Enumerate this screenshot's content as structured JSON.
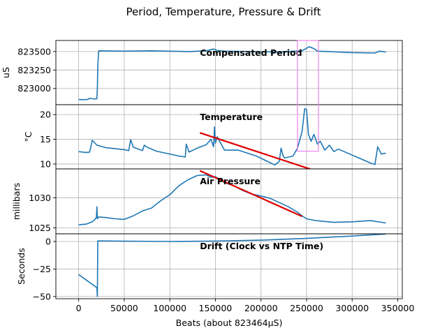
{
  "figure_title": "Period, Temperature, Pressure & Drift",
  "chart_data": [
    {
      "type": "line",
      "title": "Compensated Period",
      "xlabel": "",
      "ylabel": "uS",
      "xlim": [
        -25000,
        355000
      ],
      "ylim": [
        822780,
        823650
      ],
      "yticks": [
        823000,
        823250,
        823500
      ],
      "ytick_labels": [
        "823000",
        "823250",
        "823500"
      ],
      "grid": true,
      "series": [
        {
          "color": "#1f77b4",
          "x": [
            0,
            5000,
            10000,
            12000,
            15000,
            18000,
            20000,
            20500,
            21000,
            22000,
            50000,
            80000,
            100000,
            120000,
            140000,
            148000,
            152000,
            160000,
            190000,
            220000,
            245000,
            250000,
            253000,
            258000,
            262000,
            275000,
            300000,
            325000,
            330000,
            337000
          ],
          "y": [
            822850,
            822848,
            822852,
            822865,
            822860,
            822858,
            822860,
            823000,
            823300,
            823510,
            823505,
            823510,
            823505,
            823500,
            823510,
            823535,
            823515,
            823505,
            823500,
            823495,
            823510,
            823545,
            823565,
            823540,
            823505,
            823500,
            823485,
            823480,
            823505,
            823495
          ]
        }
      ],
      "annotation": {
        "type": "rectangle",
        "color": "#ee82ee",
        "x0": 240000,
        "x1": 263000,
        "y0": 822150,
        "y1": 823650
      }
    },
    {
      "type": "line",
      "title": "Temperature",
      "xlabel": "",
      "ylabel": "°C",
      "xlim": [
        -25000,
        355000
      ],
      "ylim": [
        9.0,
        22.0
      ],
      "yticks": [
        10,
        15,
        20
      ],
      "ytick_labels": [
        "10",
        "15",
        "20"
      ],
      "grid": true,
      "series": [
        {
          "color": "#1f77b4",
          "x": [
            0,
            8000,
            12000,
            15000,
            20000,
            30000,
            50000,
            55000,
            57000,
            60000,
            70000,
            72000,
            75000,
            85000,
            110000,
            117000,
            118000,
            121000,
            130000,
            140000,
            145000,
            148000,
            149000,
            150000,
            152000,
            160000,
            175000,
            195000,
            215000,
            220000,
            222000,
            224000,
            226000,
            235000,
            240000,
            245000,
            248000,
            250000,
            252000,
            255000,
            258000,
            262000,
            265000,
            270000,
            275000,
            280000,
            285000,
            300000,
            320000,
            325000,
            328000,
            332000,
            337000
          ],
          "y": [
            12.5,
            12.3,
            12.4,
            14.8,
            13.8,
            13.3,
            12.9,
            12.7,
            14.9,
            13.4,
            12.7,
            13.8,
            13.4,
            12.6,
            11.6,
            11.4,
            14.0,
            12.4,
            13.2,
            13.9,
            15.0,
            13.5,
            17.5,
            14.2,
            15.5,
            12.8,
            12.8,
            11.6,
            9.8,
            10.5,
            13.2,
            11.8,
            11.2,
            11.6,
            13.2,
            16.5,
            21.2,
            21.0,
            16.0,
            14.6,
            16.0,
            14.0,
            14.6,
            12.8,
            13.8,
            12.5,
            13.0,
            11.8,
            10.2,
            9.9,
            13.5,
            12.0,
            12.2
          ]
        }
      ],
      "trendline": {
        "color": "#e00000",
        "x": [
          133000,
          255000
        ],
        "y": [
          16.3,
          8.9
        ]
      }
    },
    {
      "type": "line",
      "title": "Air Pressure",
      "xlabel": "",
      "ylabel": "millibars",
      "xlim": [
        -25000,
        355000
      ],
      "ylim": [
        1024.0,
        1034.8
      ],
      "yticks": [
        1025,
        1030
      ],
      "ytick_labels": [
        "1025",
        "1030"
      ],
      "grid": true,
      "series": [
        {
          "color": "#1f77b4",
          "x": [
            0,
            8000,
            15000,
            18000,
            19500,
            20000,
            20500,
            22000,
            30000,
            40000,
            50000,
            60000,
            70000,
            80000,
            90000,
            100000,
            110000,
            120000,
            130000,
            140000,
            145000,
            150000,
            160000,
            170000,
            180000,
            190000,
            200000,
            210000,
            220000,
            230000,
            240000,
            245000,
            250000,
            260000,
            280000,
            300000,
            320000,
            337000
          ],
          "y": [
            1025.5,
            1025.6,
            1026.0,
            1026.4,
            1026.8,
            1028.5,
            1026.5,
            1026.8,
            1026.7,
            1026.5,
            1026.4,
            1027.0,
            1027.8,
            1028.3,
            1029.5,
            1030.5,
            1032.0,
            1033.0,
            1033.7,
            1033.8,
            1033.4,
            1033.5,
            1032.5,
            1032.0,
            1031.2,
            1030.6,
            1030.3,
            1029.9,
            1029.2,
            1028.5,
            1027.6,
            1027.0,
            1026.5,
            1026.2,
            1025.9,
            1026.0,
            1026.2,
            1025.8
          ]
        }
      ],
      "trendline": {
        "color": "#e00000",
        "x": [
          133000,
          245000
        ],
        "y": [
          1034.5,
          1026.9
        ]
      }
    },
    {
      "type": "line",
      "title": "Drift (Clock vs NTP Time)",
      "xlabel": "Beats (about 823464µS)",
      "ylabel": "Seconds",
      "xlim": [
        -25000,
        355000
      ],
      "ylim": [
        -52,
        7
      ],
      "yticks": [
        -50,
        -25,
        0
      ],
      "ytick_labels": [
        "−50",
        "−25",
        "0"
      ],
      "xticks": [
        0,
        50000,
        100000,
        150000,
        200000,
        250000,
        300000,
        350000
      ],
      "xtick_labels": [
        "0",
        "50000",
        "100000",
        "150000",
        "200000",
        "250000",
        "300000",
        "350000"
      ],
      "grid": true,
      "series": [
        {
          "color": "#1f77b4",
          "x": [
            0,
            10000,
            20000,
            20500,
            21000,
            50000,
            100000,
            150000,
            200000,
            250000,
            300000,
            330000,
            337000
          ],
          "y": [
            -30,
            -36,
            -42,
            -50,
            0.5,
            0.3,
            0.0,
            0.4,
            1.2,
            2.8,
            5.0,
            6.5,
            6.8
          ]
        }
      ]
    }
  ]
}
